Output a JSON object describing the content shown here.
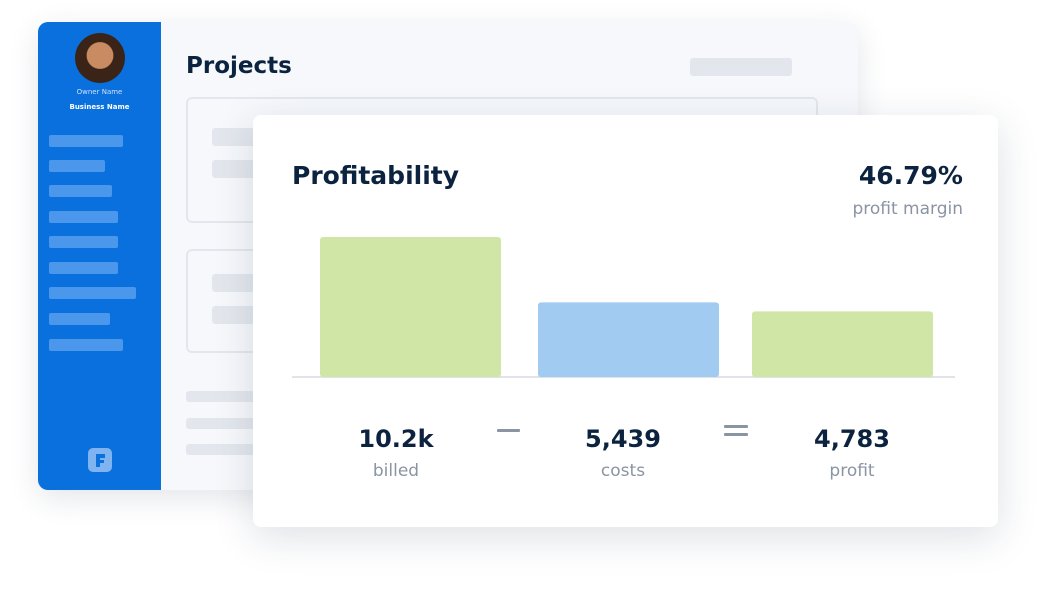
{
  "sidebar": {
    "owner_name": "Owner Name",
    "business_name": "Business Name"
  },
  "main": {
    "title": "Projects"
  },
  "card": {
    "margin_label": "46.79%",
    "margin_caption": "profit margin"
  },
  "chart_data": {
    "type": "bar",
    "title": "Profitability",
    "categories": [
      "billed",
      "costs",
      "profit"
    ],
    "values": [
      10200,
      5439,
      4783
    ],
    "value_labels": [
      "10.2k",
      "5,439",
      "4,783"
    ],
    "colors": [
      "#cfe6a6",
      "#a2cbf1",
      "#cfe6a6"
    ]
  }
}
